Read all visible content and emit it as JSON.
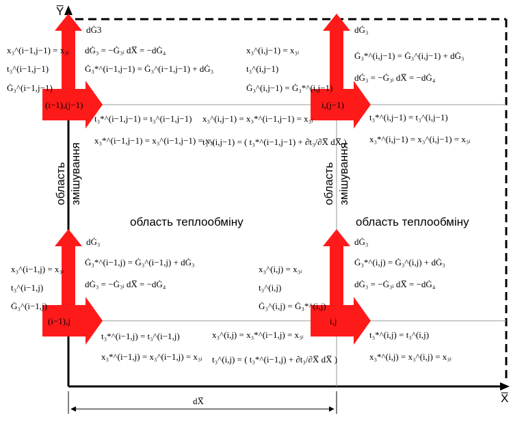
{
  "axes": {
    "y_label": "Y̅",
    "x_label": "X̅",
    "dx_label": "dX̅"
  },
  "colors": {
    "arrow": "#ff1a1a",
    "line": "#000000",
    "grid": "#9a9a9a"
  },
  "cells": {
    "top_left": {
      "node": "(i−1),(j−1)",
      "arrow_label": "dĠ3",
      "left_eqs": [
        "x₃^(i−1,j−1) = x₃ᵢ",
        "t₃^(i−1,j−1)",
        "Ġ₃^(i−1,j−1)"
      ],
      "mid_eqs": [
        "dĠ₃ = −Ġ₃ᵢ dX̅ = −dĠ₄",
        "Ġ₃*^(i−1,j−1) = Ġ₃^(i−1,j−1) + dĠ₃"
      ],
      "below_eqs": [
        "t₃*^(i−1,j−1) = t₃^(i−1,j−1)",
        "x₃*^(i−1,j−1) = x₃^(i−1,j−1) = x₃ᵢ"
      ]
    },
    "top_center": {
      "eqs": [
        "x₃^(i,j−1) = x₃ᵢ",
        "t₃^(i,j−1)",
        "Ġ₃^(i,j−1) = Ġ₃*^(i,j−1)"
      ],
      "below_eqs": [
        "x₃^(i,j−1) = x₃*^(i−1,j−1) = x₃ᵢ",
        "t₃^(i,j−1) = ( t₃*^(i−1,j−1) + ∂t₃/∂X̅ dX̅ )"
      ]
    },
    "top_right": {
      "node": "i,(j−1)",
      "arrow_label": "dĠ₃",
      "eqs": [
        "Ġ₃*^(i,j−1) = Ġ₃^(i,j−1) + dĠ₃",
        "dĠ₃ = −Ġ₃ᵢ dX̅ = −dĠ₄"
      ],
      "below_eqs": [
        "t₃*^(i,j−1) = t₃^(i,j−1)",
        "x₃*^(i,j−1) = x₃^(i,j−1) = x₃ᵢ"
      ]
    },
    "bottom_left": {
      "node": "(i−1),j",
      "arrow_label": "dĠ₃",
      "left_eqs": [
        "x₃^(i−1,j) = x₃ᵢ",
        "t₃^(i−1,j)",
        "Ġ₃^(i−1,j)"
      ],
      "mid_eqs": [
        "Ġ₃*^(i−1,j) = Ġ₃^(i−1,j) + dĠ₃",
        "dĠ₃ = −Ġ₃ᵢ dX̅ = −dĠ₄"
      ],
      "below_eqs": [
        "t₃*^(i−1,j) = t₃^(i−1,j)",
        "x₃*^(i−1,j) = x₃^(i−1,j) = x₃ᵢ"
      ]
    },
    "bottom_center": {
      "eqs": [
        "x₃^(i,j) = x₃ᵢ",
        "t₃^(i,j)",
        "Ġ₃^(i,j) = Ġ₃*^(i,j)"
      ],
      "below_eqs": [
        "x₃^(i,j) = x₃*^(i−1,j) = x₃ᵢ",
        "t₃^(i,j) = ( t₃*^(i−1,j) + ∂t₃/∂X̅ dX̅ )"
      ]
    },
    "bottom_right": {
      "node": "i,j",
      "arrow_label": "dĠ₃",
      "eqs": [
        "Ġ₃*^(i,j) = Ġ₃^(i,j) + dĠ₃",
        "dĠ₃ = −Ġ₃ᵢ dX̅ = −dĠ₄"
      ],
      "below_eqs": [
        "t₃*^(i,j) = t₃^(i,j)",
        "x₃*^(i,j) = x₃^(i,j) = x₃ᵢ"
      ]
    }
  },
  "labels": {
    "mixing_region_line1": "область",
    "mixing_region_line2": "змішування",
    "heat_exchange_region": "область теплообміну"
  }
}
